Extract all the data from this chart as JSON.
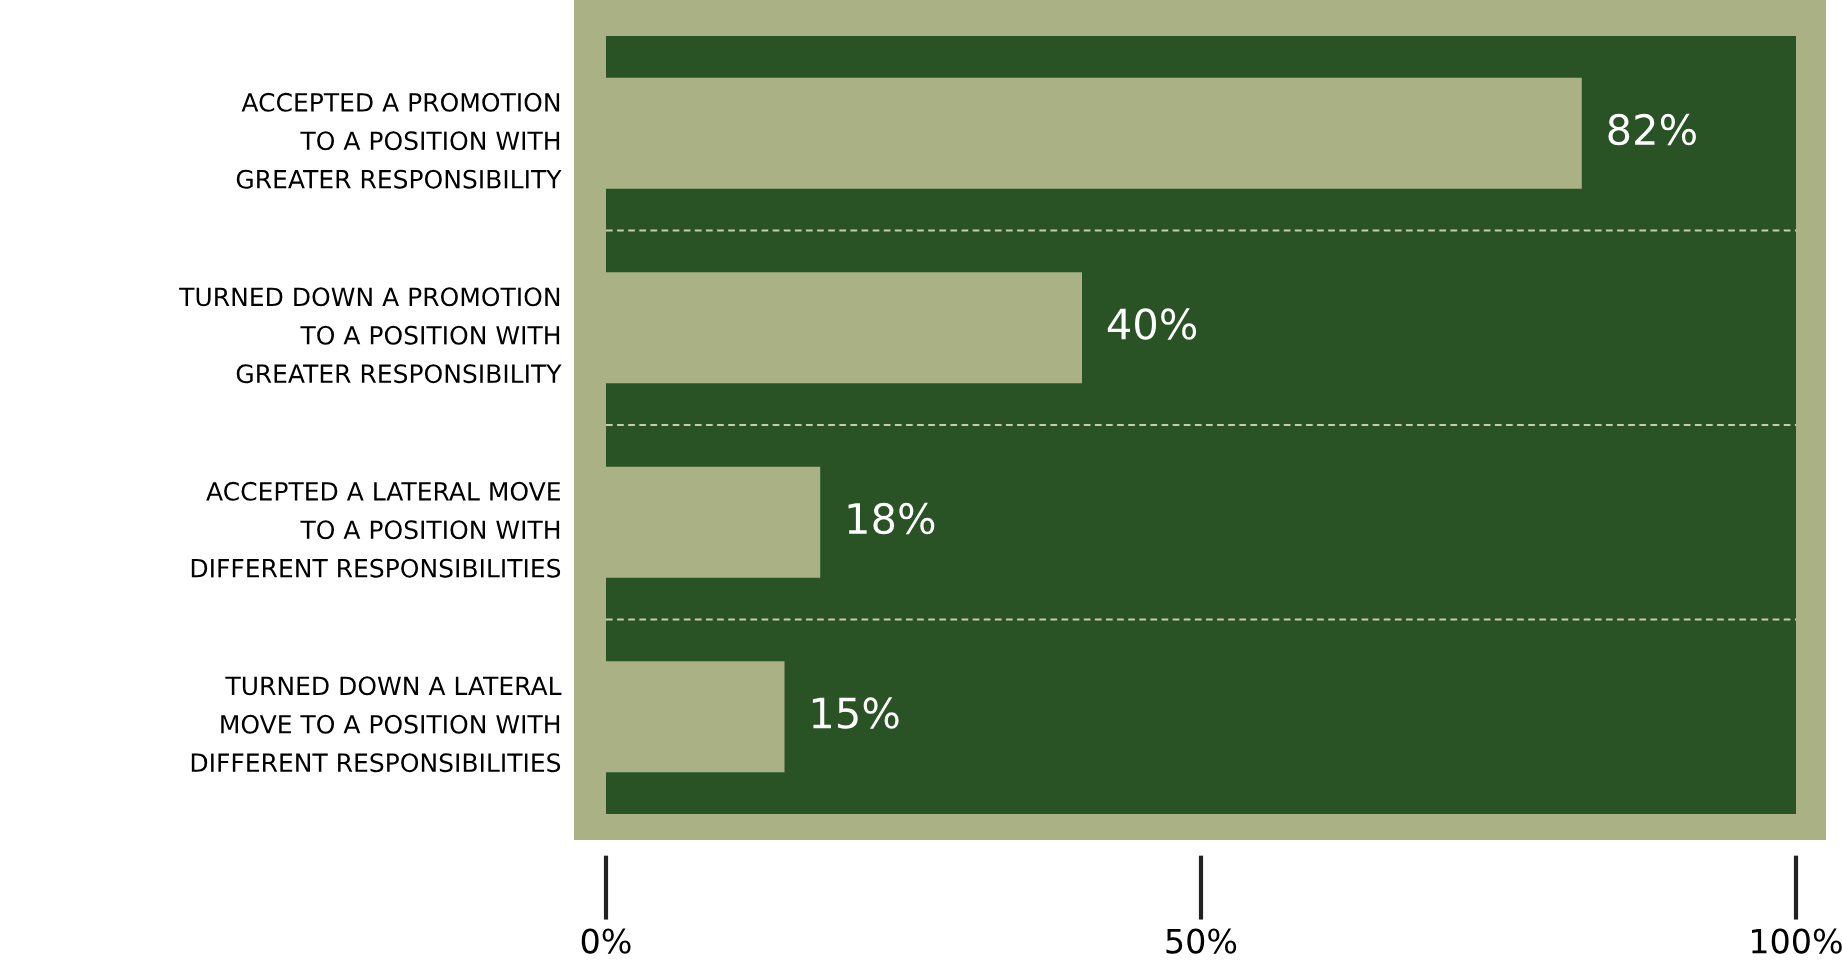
{
  "chart_data": {
    "type": "bar",
    "orientation": "horizontal",
    "categories": [
      "ACCEPTED A PROMOTION\nTO A POSITION WITH\nGREATER RESPONSIBILITY",
      "TURNED DOWN A PROMOTION\nTO A POSITION WITH\nGREATER RESPONSIBILITY",
      "ACCEPTED A LATERAL MOVE\nTO A POSITION WITH\nDIFFERENT RESPONSIBILITIES",
      "TURNED DOWN A LATERAL\nMOVE TO A POSITION WITH\nDIFFERENT RESPONSIBILITIES"
    ],
    "values": [
      82,
      40,
      18,
      15
    ],
    "color": "#aab285",
    "xlim": [
      0,
      100
    ],
    "xticks": [
      {
        "value": 0,
        "label": "0%"
      },
      {
        "value": 50,
        "label": "50%"
      },
      {
        "value": 100,
        "label": "100%"
      }
    ],
    "value_labels": [
      "82%",
      "40%",
      "18%",
      "15%"
    ],
    "grid": "y"
  }
}
